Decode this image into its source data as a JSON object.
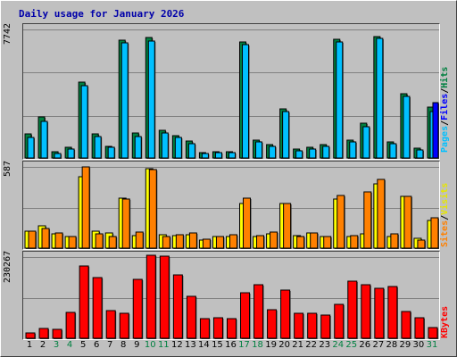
{
  "title": "Daily usage for January 2026",
  "colors": {
    "frame_bg": "#c0c0c0",
    "title": "#0000aa",
    "hits": "#008040",
    "files": "#00c0ff",
    "pages": "#0000ff",
    "visits": "#ffff00",
    "sites": "#ff8000",
    "kbytes": "#ff0000",
    "weekend_day": "#008040",
    "weekday_day": "#000000"
  },
  "chart_data": [
    {
      "type": "bar",
      "name": "hits-files-pages",
      "max_label": "7742",
      "legend": [
        "Pages",
        "Files",
        "Hits"
      ],
      "legend_colors": [
        "#00c0ff",
        "#0000ff",
        "#008040"
      ],
      "ylim": [
        0,
        7742
      ],
      "categories": [
        "1",
        "2",
        "3",
        "4",
        "5",
        "6",
        "7",
        "8",
        "9",
        "10",
        "11",
        "12",
        "13",
        "14",
        "15",
        "16",
        "17",
        "18",
        "19",
        "20",
        "21",
        "22",
        "23",
        "24",
        "25",
        "26",
        "27",
        "28",
        "29",
        "30",
        "31"
      ],
      "series": [
        {
          "name": "Hits",
          "values": [
            1450,
            2480,
            400,
            620,
            4550,
            1430,
            720,
            7050,
            1490,
            7190,
            1630,
            1320,
            1030,
            330,
            350,
            380,
            6950,
            1080,
            780,
            2940,
            560,
            620,
            780,
            7090,
            1080,
            2060,
            7270,
            960,
            3820,
            570,
            3060
          ]
        },
        {
          "name": "Files",
          "values": [
            1250,
            2180,
            280,
            540,
            4340,
            1280,
            620,
            6910,
            1300,
            7020,
            1510,
            1210,
            880,
            280,
            320,
            320,
            6760,
            950,
            700,
            2750,
            450,
            520,
            680,
            6960,
            950,
            1870,
            7140,
            850,
            3700,
            480,
            2780
          ]
        },
        {
          "name": "Pages",
          "values": [
            0,
            0,
            0,
            0,
            0,
            0,
            0,
            0,
            0,
            0,
            0,
            0,
            0,
            0,
            0,
            0,
            0,
            0,
            0,
            0,
            0,
            0,
            0,
            0,
            0,
            0,
            0,
            0,
            0,
            0,
            3300
          ]
        }
      ]
    },
    {
      "type": "bar",
      "name": "visits-sites",
      "max_label": "587",
      "legend": [
        "Sites",
        "Visits"
      ],
      "legend_colors": [
        "#ff8000",
        "#ffff00"
      ],
      "ylim": [
        0,
        587
      ],
      "categories": [
        "1",
        "2",
        "3",
        "4",
        "5",
        "6",
        "7",
        "8",
        "9",
        "10",
        "11",
        "12",
        "13",
        "14",
        "15",
        "16",
        "17",
        "18",
        "19",
        "20",
        "21",
        "22",
        "23",
        "24",
        "25",
        "26",
        "27",
        "28",
        "29",
        "30",
        "31"
      ],
      "series": [
        {
          "name": "Visits",
          "values": [
            120,
            160,
            100,
            80,
            510,
            120,
            110,
            360,
            90,
            570,
            95,
            90,
            95,
            60,
            80,
            80,
            320,
            80,
            100,
            320,
            90,
            110,
            80,
            350,
            85,
            100,
            460,
            85,
            370,
            70,
            200
          ]
        },
        {
          "name": "Sites",
          "values": [
            120,
            140,
            110,
            80,
            580,
            100,
            80,
            350,
            115,
            560,
            85,
            95,
            110,
            65,
            85,
            95,
            355,
            90,
            115,
            320,
            80,
            110,
            80,
            375,
            90,
            400,
            490,
            100,
            370,
            60,
            215
          ]
        }
      ]
    },
    {
      "type": "bar",
      "name": "kbytes",
      "max_label": "230267",
      "legend": [
        "KBytes"
      ],
      "legend_colors": [
        "#ff0000"
      ],
      "ylim": [
        0,
        230267
      ],
      "categories": [
        "1",
        "2",
        "3",
        "4",
        "5",
        "6",
        "7",
        "8",
        "9",
        "10",
        "11",
        "12",
        "13",
        "14",
        "15",
        "16",
        "17",
        "18",
        "19",
        "20",
        "21",
        "22",
        "23",
        "24",
        "25",
        "26",
        "27",
        "28",
        "29",
        "30",
        "31"
      ],
      "series": [
        {
          "name": "KBytes",
          "values": [
            14000,
            27000,
            26000,
            73000,
            202000,
            170000,
            77000,
            70000,
            165000,
            233000,
            230000,
            178000,
            118000,
            55000,
            57000,
            56000,
            127000,
            149000,
            81000,
            135000,
            71000,
            70000,
            65000,
            94000,
            160000,
            151000,
            140000,
            146000,
            76000,
            57000,
            29000
          ]
        }
      ]
    }
  ],
  "days": [
    "1",
    "2",
    "3",
    "4",
    "5",
    "6",
    "7",
    "8",
    "9",
    "10",
    "11",
    "12",
    "13",
    "14",
    "15",
    "16",
    "17",
    "18",
    "19",
    "20",
    "21",
    "22",
    "23",
    "24",
    "25",
    "26",
    "27",
    "28",
    "29",
    "30",
    "31"
  ],
  "weekend_days": [
    "3",
    "4",
    "10",
    "11",
    "17",
    "18",
    "24",
    "25",
    "31"
  ]
}
